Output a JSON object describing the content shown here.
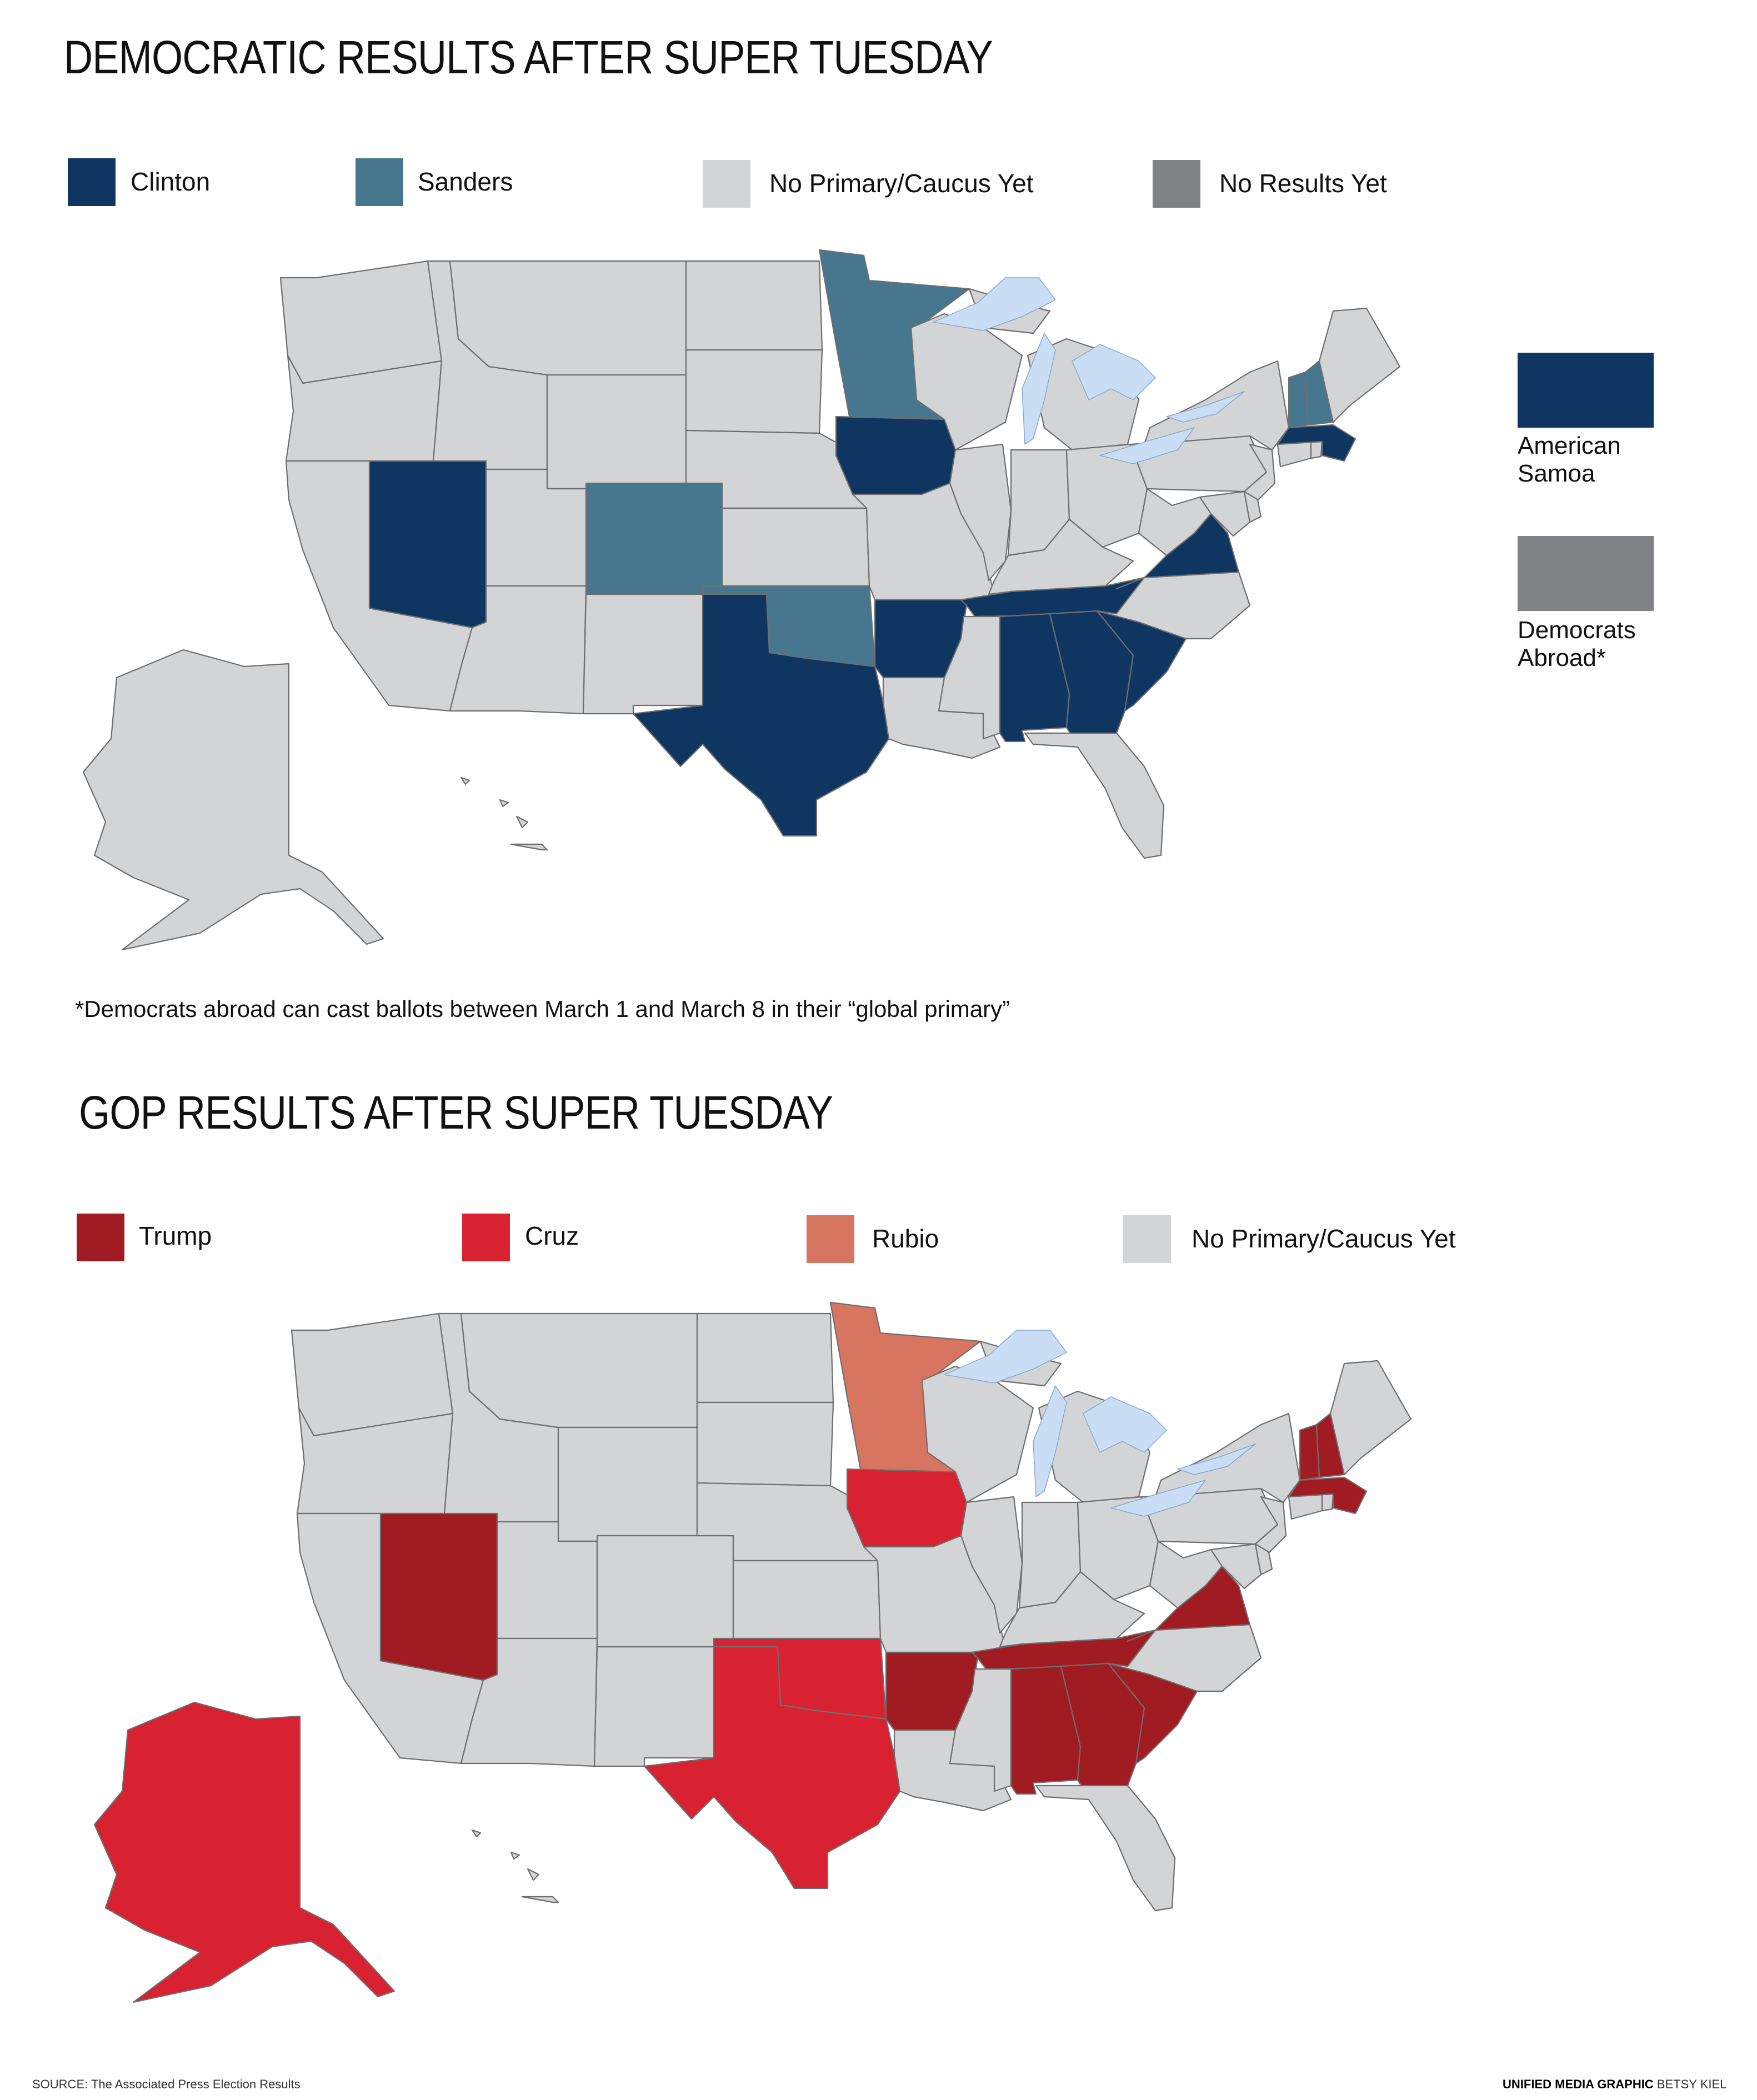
{
  "colors": {
    "clinton": "#0f3660",
    "sanders": "#46778f",
    "no_primary": "#d3d4d6",
    "no_results": "#808184",
    "lake": "#c9def4",
    "trump": "#a11c22",
    "cruz": "#d82131",
    "rubio": "#d87560",
    "alaska_gop": "#d82131"
  },
  "dem": {
    "title": "DEMOCRATIC RESULTS AFTER SUPER TUESDAY",
    "legend": [
      {
        "key": "clinton",
        "label": "Clinton"
      },
      {
        "key": "sanders",
        "label": "Sanders"
      },
      {
        "key": "no_primary",
        "label": "No Primary/Caucus Yet"
      },
      {
        "key": "no_results",
        "label": "No Results Yet"
      }
    ],
    "side": [
      {
        "key": "clinton",
        "label": "American Samoa"
      },
      {
        "key": "no_results",
        "label": "Democrats Abroad*"
      }
    ],
    "footnote": "*Democrats abroad can cast ballots between March 1 and March 8 in their “global primary”",
    "states": {
      "NV": "clinton",
      "IA": "clinton",
      "TX": "clinton",
      "AR": "clinton",
      "TN": "clinton",
      "VA": "clinton",
      "AL": "clinton",
      "GA": "clinton",
      "SC": "clinton",
      "MA": "clinton",
      "CO": "sanders",
      "OK": "sanders",
      "MN": "sanders",
      "VT": "sanders",
      "NH": "sanders"
    }
  },
  "gop": {
    "title": "GOP RESULTS AFTER SUPER TUESDAY",
    "legend": [
      {
        "key": "trump",
        "label": "Trump"
      },
      {
        "key": "cruz",
        "label": "Cruz"
      },
      {
        "key": "rubio",
        "label": "Rubio"
      },
      {
        "key": "no_primary",
        "label": "No Primary/Caucus Yet"
      }
    ],
    "states": {
      "NV": "trump",
      "AR": "trump",
      "TN": "trump",
      "VA": "trump",
      "AL": "trump",
      "GA": "trump",
      "SC": "trump",
      "VT": "trump",
      "NH": "trump",
      "MA": "trump",
      "IA": "cruz",
      "TX": "cruz",
      "OK": "cruz",
      "AK": "cruz",
      "MN": "rubio"
    }
  },
  "footer": {
    "source": "SOURCE: The Associated Press Election Results",
    "credit_bold": "UNIFIED MEDIA GRAPHIC",
    "credit_name": "BETSY KIEL"
  }
}
